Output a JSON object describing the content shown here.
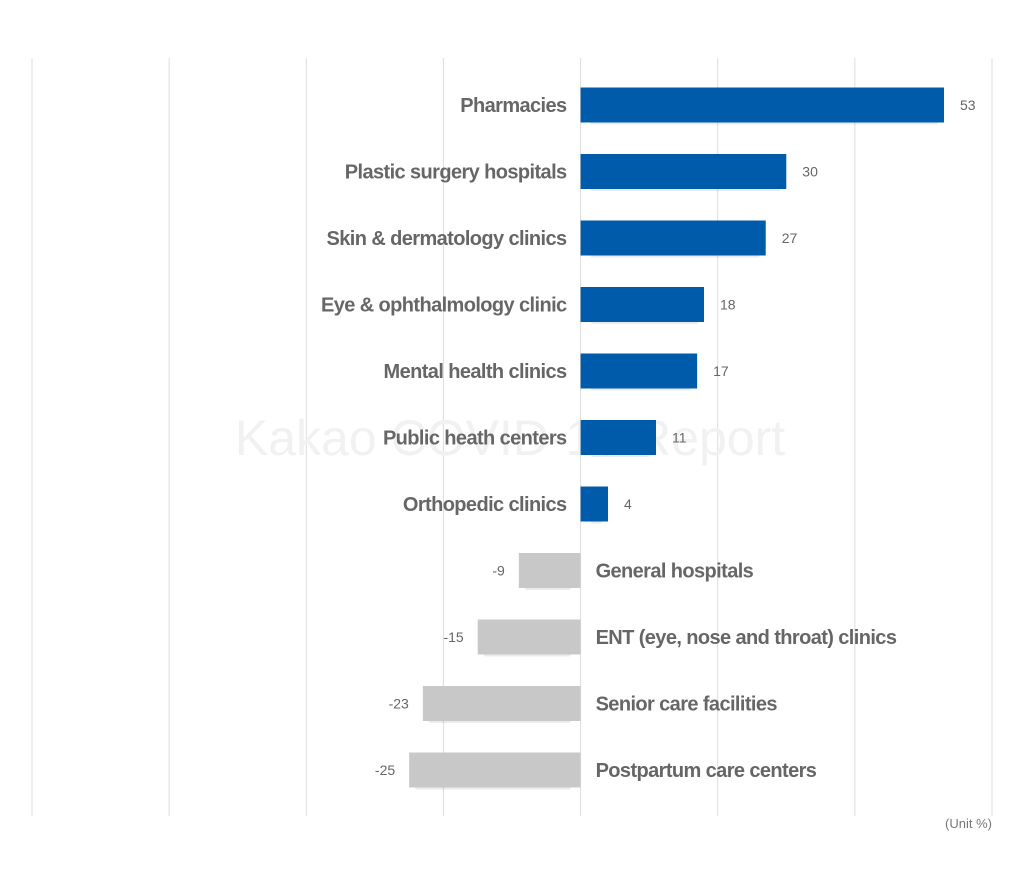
{
  "chart_data": {
    "type": "bar",
    "orientation": "horizontal",
    "categories": [
      "Pharmacies",
      "Plastic surgery hospitals",
      "Skin & dermatology clinics",
      "Eye & ophthalmology clinic",
      "Mental health clinics",
      "Public heath centers",
      "Orthopedic clinics",
      "General hospitals",
      "ENT (eye, nose and throat) clinics",
      "Senior care facilities",
      "Postpartum care centers"
    ],
    "values": [
      53,
      30,
      27,
      18,
      17,
      11,
      4,
      -9,
      -15,
      -23,
      -25
    ],
    "value_labels": [
      "53",
      "30",
      "27",
      "18",
      "17",
      "11",
      "4",
      "-9",
      "-15",
      "-23",
      "-25"
    ],
    "xlim": [
      -80,
      60
    ],
    "grid": true,
    "unit": "(Unit %)",
    "watermark": "Kakao COVID-19 Report",
    "colors": {
      "positive": "#005bab",
      "negative": "#c8c8c8",
      "grid": "#dddddd",
      "label": "#666666"
    }
  }
}
